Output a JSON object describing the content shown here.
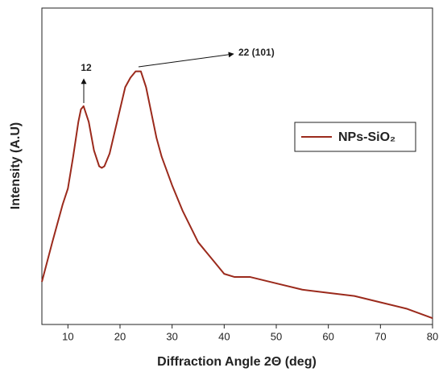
{
  "chart_data": {
    "type": "line",
    "xlabel": "Diffraction Angle 2Θ (deg)",
    "ylabel": "Intensity (A.U)",
    "x": [
      5,
      7,
      9,
      10,
      11,
      12,
      12.5,
      13,
      14,
      15,
      16,
      16.5,
      17,
      18,
      19,
      20,
      21,
      22,
      23,
      24,
      25,
      26,
      27,
      28,
      30,
      32,
      35,
      38,
      40,
      42,
      45,
      50,
      55,
      60,
      65,
      70,
      75,
      80
    ],
    "series": [
      {
        "name": "NPs-SiO₂",
        "color": "#9b2a1c",
        "values": [
          13.5,
          26,
          38,
          43,
          53,
          64,
          68,
          69,
          64,
          55,
          50,
          49.5,
          50,
          54,
          61,
          68,
          75,
          78,
          80,
          80,
          75,
          67,
          59,
          53,
          44,
          36,
          26,
          20,
          16,
          15,
          15,
          13,
          11,
          10,
          9,
          7,
          5,
          2
        ]
      }
    ],
    "xlim": [
      5,
      80
    ],
    "xticks": [
      10,
      20,
      30,
      40,
      50,
      60,
      70,
      80
    ],
    "ylim": [
      0,
      100
    ],
    "annotations": [
      "12",
      "22 (101)"
    ],
    "legend": "upper right"
  }
}
